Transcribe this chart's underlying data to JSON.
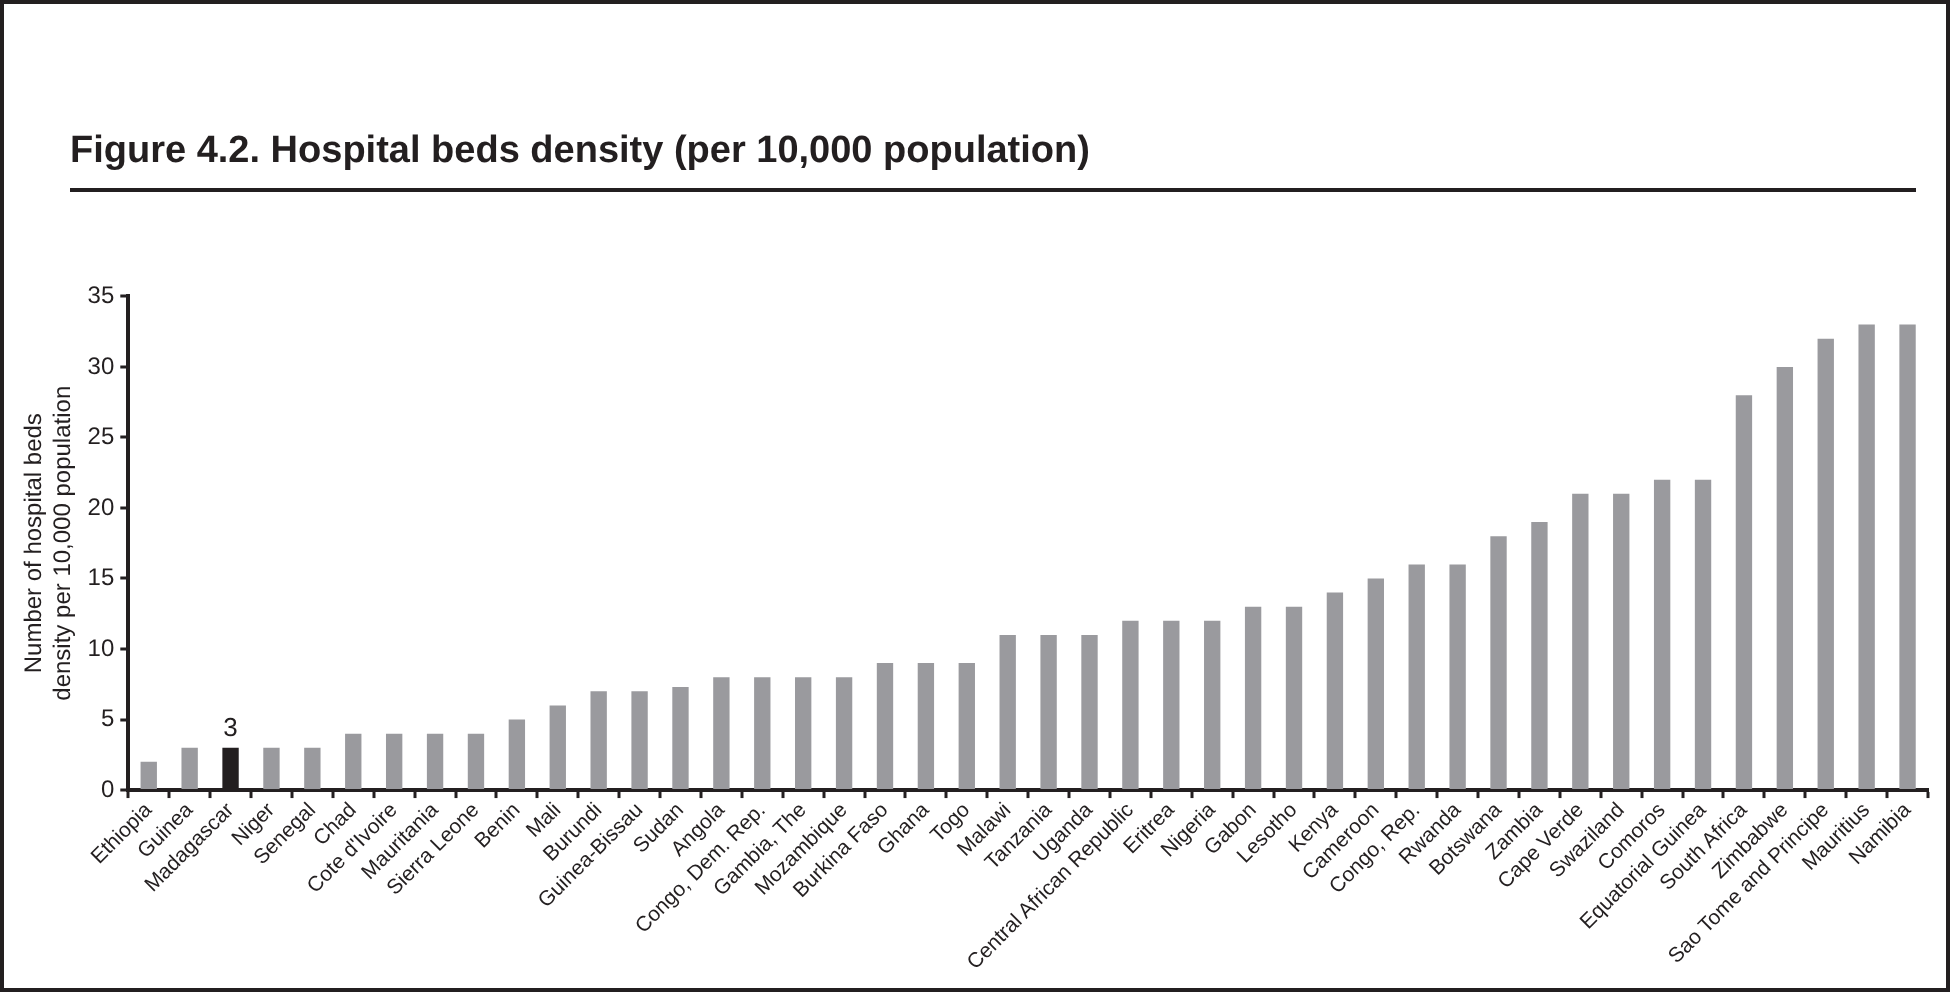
{
  "chart_data": {
    "type": "bar",
    "title": "Figure 4.2. Hospital beds density (per 10,000 population)",
    "ylabel": "Number of hospital beds\ndensity per 10,000 population",
    "categories": [
      "Ethiopia",
      "Guinea",
      "Madagascar",
      "Niger",
      "Senegal",
      "Chad",
      "Cote d'Ivoire",
      "Mauritania",
      "Sierra Leone",
      "Benin",
      "Mali",
      "Burundi",
      "Guinea-Bissau",
      "Sudan",
      "Angola",
      "Congo, Dem. Rep.",
      "Gambia, The",
      "Mozambique",
      "Burkina Faso",
      "Ghana",
      "Togo",
      "Malawi",
      "Tanzania",
      "Uganda",
      "Central African Republic",
      "Eritrea",
      "Nigeria",
      "Gabon",
      "Lesotho",
      "Kenya",
      "Cameroon",
      "Congo, Rep.",
      "Rwanda",
      "Botswana",
      "Zambia",
      "Cape Verde",
      "Swaziland",
      "Comoros",
      "Equatorial Guinea",
      "South Africa",
      "Zimbabwe",
      "Sao Tome and Principe",
      "Mauritius",
      "Namibia"
    ],
    "values": [
      2,
      3,
      3,
      3,
      3,
      4,
      4,
      4,
      4,
      5,
      6,
      7,
      7,
      7.3,
      8,
      8,
      8,
      8,
      9,
      9,
      9,
      11,
      11,
      11,
      12,
      12,
      12,
      13,
      13,
      14,
      15,
      16,
      16,
      18,
      19,
      21,
      21,
      22,
      22,
      28,
      30,
      32,
      33,
      33
    ],
    "colors": [
      "#9a9a9e",
      "#9a9a9e",
      "#231f20",
      "#9a9a9e",
      "#9a9a9e",
      "#9a9a9e",
      "#9a9a9e",
      "#9a9a9e",
      "#9a9a9e",
      "#9a9a9e",
      "#9a9a9e",
      "#9a9a9e",
      "#9a9a9e",
      "#9a9a9e",
      "#9a9a9e",
      "#9a9a9e",
      "#9a9a9e",
      "#9a9a9e",
      "#9a9a9e",
      "#9a9a9e",
      "#9a9a9e",
      "#9a9a9e",
      "#9a9a9e",
      "#9a9a9e",
      "#9a9a9e",
      "#9a9a9e",
      "#9a9a9e",
      "#9a9a9e",
      "#9a9a9e",
      "#9a9a9e",
      "#9a9a9e",
      "#9a9a9e",
      "#9a9a9e",
      "#9a9a9e",
      "#9a9a9e",
      "#9a9a9e",
      "#9a9a9e",
      "#9a9a9e",
      "#9a9a9e",
      "#9a9a9e",
      "#9a9a9e",
      "#9a9a9e",
      "#9a9a9e",
      "#9a9a9e"
    ],
    "value_labels": [
      null,
      null,
      "3",
      null,
      null,
      null,
      null,
      null,
      null,
      null,
      null,
      null,
      null,
      null,
      null,
      null,
      null,
      null,
      null,
      null,
      null,
      null,
      null,
      null,
      null,
      null,
      null,
      null,
      null,
      null,
      null,
      null,
      null,
      null,
      null,
      null,
      null,
      null,
      null,
      null,
      null,
      null,
      null,
      null
    ],
    "ylim": [
      0,
      35
    ],
    "yticks": [
      0,
      5,
      10,
      15,
      20,
      25,
      30,
      35
    ],
    "grid": false,
    "legend": false
  }
}
